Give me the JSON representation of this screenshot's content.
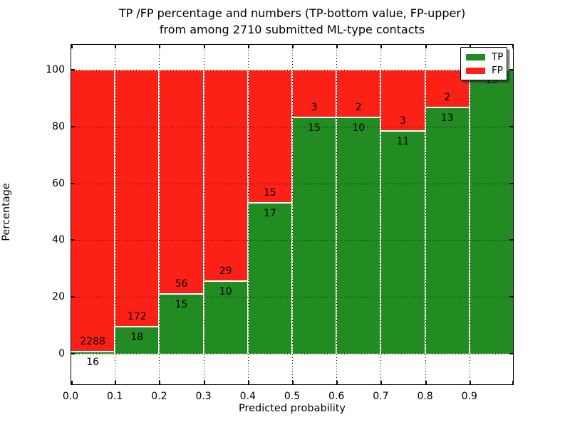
{
  "figure": {
    "title_line1": "TP /FP percentage and numbers (TP-bottom value, FP-upper)",
    "title_line2": "from among 2710 submitted ML-type contacts"
  },
  "chart_data": {
    "type": "bar",
    "stacked": true,
    "normalized_to": 100,
    "title": "TP /FP percentage and numbers (TP-bottom value, FP-upper)\nfrom among 2710 submitted ML-type contacts",
    "xlabel": "Predicted probability",
    "ylabel": "Percentage",
    "total_contacts": 2710,
    "categories": [
      "0.0-0.1",
      "0.1-0.2",
      "0.2-0.3",
      "0.3-0.4",
      "0.4-0.5",
      "0.5-0.6",
      "0.6-0.7",
      "0.7-0.8",
      "0.8-0.9",
      "0.9-1.0"
    ],
    "bin_edges": [
      0.0,
      0.1,
      0.2,
      0.3,
      0.4,
      0.5,
      0.6,
      0.7,
      0.8,
      0.9,
      1.0
    ],
    "series": [
      {
        "name": "TP",
        "color": "#228b22",
        "counts": [
          16,
          18,
          15,
          10,
          17,
          15,
          10,
          11,
          13,
          15
        ]
      },
      {
        "name": "FP",
        "color": "#fc2116",
        "counts": [
          2288,
          172,
          56,
          29,
          15,
          3,
          2,
          3,
          2,
          0
        ]
      }
    ],
    "tp_percent": [
      0.7,
      9.5,
      21.1,
      25.6,
      53.1,
      83.3,
      83.3,
      78.6,
      86.7,
      100.0
    ],
    "x_tick_labels": [
      "0.0",
      "0.1",
      "0.2",
      "0.3",
      "0.4",
      "0.5",
      "0.6",
      "0.7",
      "0.8",
      "0.9"
    ],
    "y_tick_values": [
      0,
      20,
      40,
      60,
      80,
      100
    ],
    "ylim": [
      -11,
      110
    ],
    "grid": "dotted black, both axes, drawn over bars",
    "bar_edge_color": "#ffffff",
    "legend": {
      "position": "upper right",
      "entries": [
        "TP",
        "FP"
      ]
    }
  }
}
